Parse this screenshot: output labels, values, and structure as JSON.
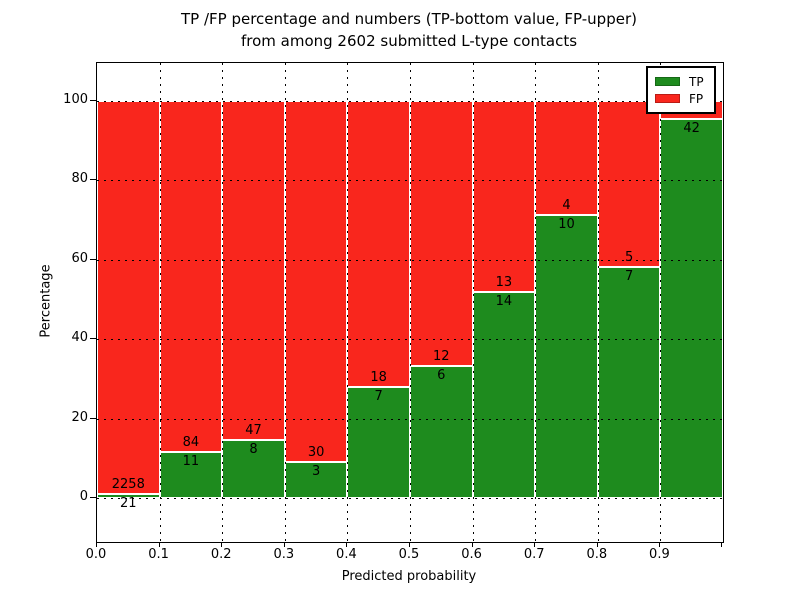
{
  "figure": {
    "background": "#ffffff",
    "text_color": "#000000"
  },
  "chart_data": {
    "type": "bar",
    "stacked": true,
    "title_line1": "TP /FP percentage and numbers (TP-bottom value, FP-upper)",
    "title_line2": "from among 2602 submitted L-type contacts",
    "total_submitted_contacts": 2602,
    "xlabel": "Predicted probability",
    "ylabel": "Percentage",
    "x_tick_labels": [
      "0.0",
      "0.1",
      "0.2",
      "0.3",
      "0.4",
      "0.5",
      "0.6",
      "0.7",
      "0.8",
      "0.9"
    ],
    "y_tick_labels": [
      "0",
      "20",
      "40",
      "60",
      "80",
      "100"
    ],
    "y_tick_values": [
      0,
      20,
      40,
      60,
      80,
      100
    ],
    "xlim": [
      0.0,
      1.0
    ],
    "ylim": [
      -11,
      110
    ],
    "grid": "dotted-over-bars",
    "colors": {
      "tp": "#1e8b1e",
      "fp": "#f9261d",
      "bar_edge": "#ffffff"
    },
    "legend": {
      "position": "upper-right",
      "entries": [
        {
          "label": "TP",
          "color": "#1e8b1e"
        },
        {
          "label": "FP",
          "color": "#f9261d"
        }
      ]
    },
    "bins": [
      {
        "range": "0.0-0.1",
        "tp_label": "21",
        "fp_label": "2258",
        "tp_count": 21,
        "fp_count": 2258,
        "tp_pct": 0.9
      },
      {
        "range": "0.1-0.2",
        "tp_label": "11",
        "fp_label": "84",
        "tp_count": 11,
        "fp_count": 84,
        "tp_pct": 11.6
      },
      {
        "range": "0.2-0.3",
        "tp_label": "8",
        "fp_label": "47",
        "tp_count": 8,
        "fp_count": 47,
        "tp_pct": 14.5
      },
      {
        "range": "0.3-0.4",
        "tp_label": "3",
        "fp_label": "30",
        "tp_count": 3,
        "fp_count": 30,
        "tp_pct": 9.1
      },
      {
        "range": "0.4-0.5",
        "tp_label": "7",
        "fp_label": "18",
        "tp_count": 7,
        "fp_count": 18,
        "tp_pct": 28.0
      },
      {
        "range": "0.5-0.6",
        "tp_label": "6",
        "fp_label": "12",
        "tp_count": 6,
        "fp_count": 12,
        "tp_pct": 33.3
      },
      {
        "range": "0.6-0.7",
        "tp_label": "14",
        "fp_label": "13",
        "tp_count": 14,
        "fp_count": 13,
        "tp_pct": 51.9
      },
      {
        "range": "0.7-0.8",
        "tp_label": "10",
        "fp_label": "4",
        "tp_count": 10,
        "fp_count": 4,
        "tp_pct": 71.4
      },
      {
        "range": "0.8-0.9",
        "tp_label": "7",
        "fp_label": "5",
        "tp_count": 7,
        "fp_count": 5,
        "tp_pct": 58.3
      },
      {
        "range": "0.9-1.0",
        "tp_label": "42",
        "fp_label": "",
        "tp_count": 42,
        "fp_count": null,
        "tp_pct": 95.5
      }
    ],
    "notes": "FP count label of last bin hidden behind legend"
  }
}
